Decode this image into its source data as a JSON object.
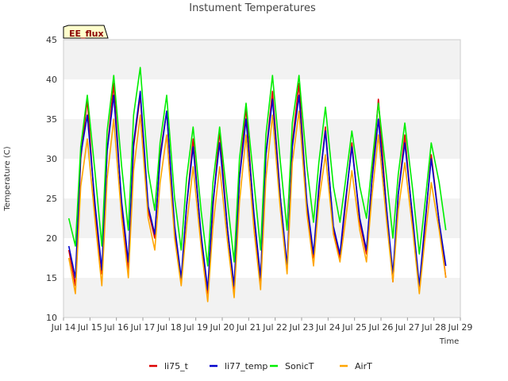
{
  "chart_data": {
    "type": "line",
    "title": "Instument Temperatures",
    "xlabel": "Time",
    "ylabel": "Temperature (C)",
    "badge": "EE_flux",
    "ylim": [
      10,
      45
    ],
    "y_ticks": [
      "10",
      "15",
      "20",
      "25",
      "30",
      "35",
      "40",
      "45"
    ],
    "xlim": [
      14,
      29
    ],
    "x_ticks": [
      "Jul 14",
      "Jul 15",
      "Jul 16",
      "Jul 17",
      "Jul 18",
      "Jul 19",
      "Jul 20",
      "Jul 21",
      "Jul 22",
      "Jul 23",
      "Jul 24",
      "Jul 25",
      "Jul 26",
      "Jul 27",
      "Jul 28",
      "Jul 29"
    ],
    "x": [
      14.2,
      14.45,
      14.65,
      14.9,
      15.2,
      15.45,
      15.65,
      15.9,
      16.2,
      16.45,
      16.65,
      16.9,
      17.2,
      17.45,
      17.65,
      17.9,
      18.2,
      18.45,
      18.65,
      18.9,
      19.2,
      19.45,
      19.65,
      19.9,
      20.2,
      20.45,
      20.65,
      20.9,
      21.2,
      21.45,
      21.65,
      21.9,
      22.2,
      22.45,
      22.65,
      22.9,
      23.2,
      23.45,
      23.65,
      23.9,
      24.2,
      24.45,
      24.65,
      24.9,
      25.2,
      25.45,
      25.65,
      25.9,
      26.2,
      26.45,
      26.65,
      26.9,
      27.2,
      27.45,
      27.65,
      27.9,
      28.2,
      28.45
    ],
    "series": [
      {
        "name": "li75_t",
        "color": "#dd0000",
        "values": [
          18.5,
          14.0,
          30.0,
          37.5,
          23.0,
          15.5,
          31.0,
          39.5,
          24.0,
          16.0,
          31.5,
          38.0,
          23.5,
          20.0,
          30.5,
          36.0,
          21.0,
          14.5,
          24.0,
          32.5,
          20.0,
          13.0,
          24.0,
          33.5,
          21.0,
          13.5,
          27.5,
          36.5,
          22.5,
          14.5,
          30.5,
          38.5,
          25.0,
          16.0,
          32.0,
          39.5,
          24.0,
          17.5,
          26.0,
          34.0,
          21.0,
          17.5,
          24.0,
          32.0,
          22.0,
          18.0,
          27.0,
          37.5,
          24.0,
          14.5,
          25.5,
          33.0,
          22.0,
          13.5,
          21.0,
          30.5,
          22.0,
          15.0
        ]
      },
      {
        "name": "li77_temp",
        "color": "#0000cc",
        "values": [
          19.0,
          15.0,
          30.5,
          35.5,
          24.0,
          16.0,
          31.0,
          38.0,
          24.5,
          17.0,
          32.0,
          38.5,
          24.0,
          20.5,
          30.0,
          36.0,
          21.5,
          15.0,
          24.0,
          31.5,
          20.5,
          13.5,
          24.5,
          32.0,
          21.0,
          14.0,
          27.5,
          35.0,
          23.0,
          15.0,
          30.5,
          37.5,
          25.0,
          16.5,
          31.5,
          38.0,
          24.5,
          18.0,
          26.5,
          33.5,
          21.5,
          18.0,
          24.5,
          31.5,
          22.5,
          18.5,
          27.0,
          35.0,
          24.0,
          15.5,
          25.5,
          32.0,
          22.5,
          14.0,
          21.5,
          30.0,
          22.0,
          16.5
        ]
      },
      {
        "name": "SonicT",
        "color": "#00ee00",
        "values": [
          22.5,
          19.0,
          31.5,
          38.0,
          28.0,
          19.0,
          33.5,
          40.5,
          29.0,
          21.0,
          35.5,
          41.5,
          28.5,
          23.5,
          32.0,
          38.0,
          25.0,
          18.5,
          27.5,
          34.0,
          23.5,
          16.5,
          27.0,
          34.0,
          24.5,
          17.0,
          30.0,
          37.0,
          27.0,
          18.5,
          33.0,
          40.5,
          29.5,
          21.0,
          34.5,
          40.5,
          29.0,
          22.0,
          29.5,
          36.5,
          26.5,
          22.0,
          27.0,
          33.5,
          26.5,
          22.5,
          29.0,
          37.0,
          28.0,
          20.0,
          28.0,
          34.5,
          26.0,
          18.0,
          24.0,
          32.0,
          27.0,
          21.0
        ]
      },
      {
        "name": "AirT",
        "color": "#ffa500",
        "values": [
          17.5,
          13.0,
          26.5,
          32.5,
          22.0,
          14.0,
          27.5,
          35.0,
          22.5,
          15.0,
          28.5,
          35.5,
          22.5,
          18.5,
          27.0,
          33.0,
          20.0,
          14.0,
          21.5,
          29.0,
          19.0,
          12.0,
          21.5,
          29.0,
          19.5,
          12.5,
          24.5,
          33.0,
          21.0,
          13.5,
          27.5,
          35.5,
          23.5,
          15.5,
          29.5,
          36.0,
          23.0,
          16.5,
          24.5,
          30.5,
          20.5,
          17.0,
          22.0,
          28.5,
          21.0,
          17.0,
          25.0,
          33.0,
          22.5,
          14.5,
          23.5,
          29.5,
          21.0,
          13.0,
          19.5,
          27.0,
          21.0,
          15.0
        ]
      }
    ],
    "grid": "horizontal bands",
    "legend_position": "bottom"
  }
}
